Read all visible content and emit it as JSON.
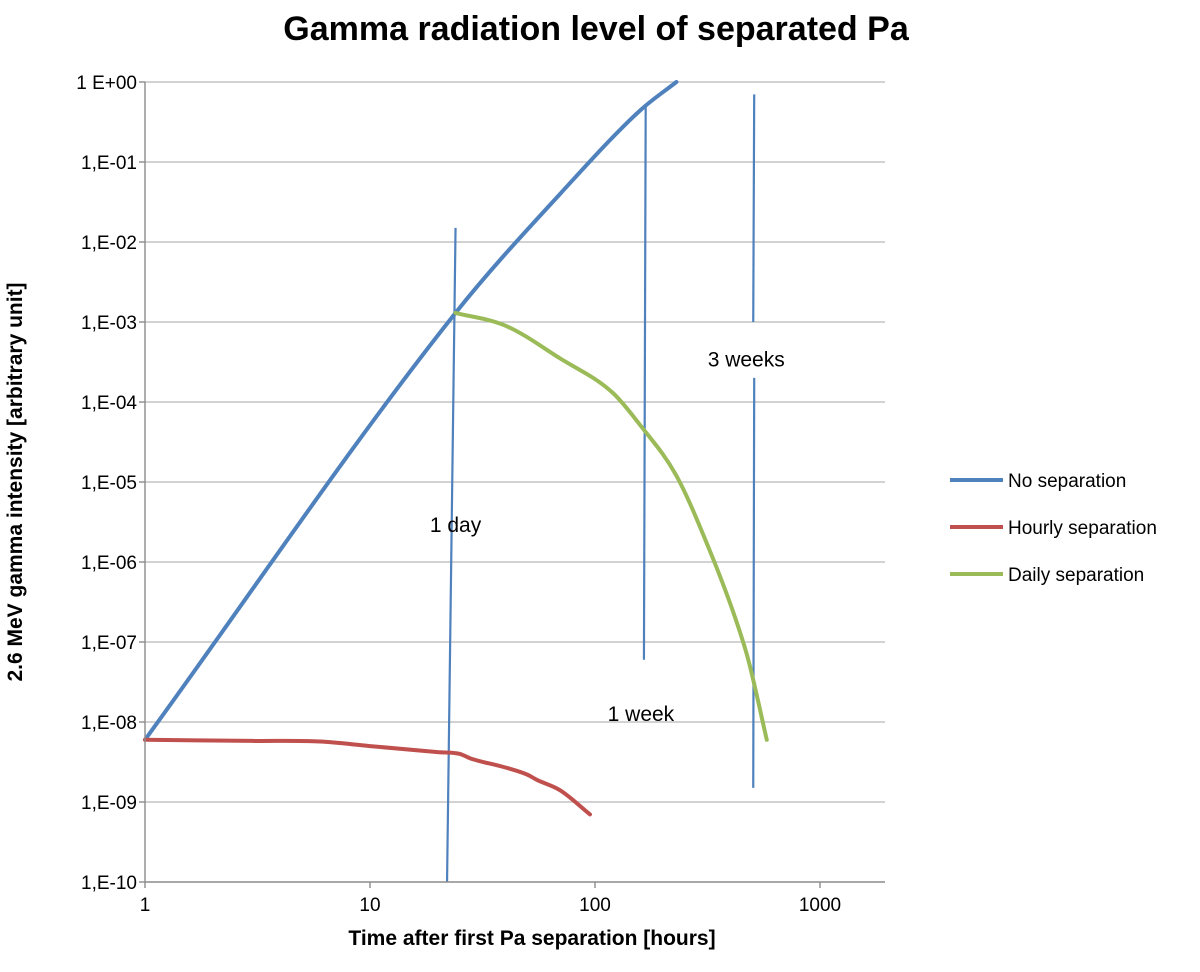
{
  "chart_data": {
    "type": "line",
    "title": "Gamma radiation level of separated Pa",
    "xlabel": "Time after first Pa separation [hours]",
    "ylabel": "2.6 MeV gamma intensity [arbitrary unit]",
    "xscale": "log",
    "yscale": "log",
    "xlim": [
      1,
      2000
    ],
    "ylim": [
      1e-10,
      1
    ],
    "x_ticks": [
      {
        "value": 1,
        "label": "1"
      },
      {
        "value": 10,
        "label": "10"
      },
      {
        "value": 100,
        "label": "100"
      },
      {
        "value": 1000,
        "label": "1000"
      }
    ],
    "y_ticks": [
      {
        "value": 1,
        "label": "1 E+00"
      },
      {
        "value": 0.1,
        "label": "1,E-01"
      },
      {
        "value": 0.01,
        "label": "1,E-02"
      },
      {
        "value": 0.001,
        "label": "1,E-03"
      },
      {
        "value": 0.0001,
        "label": "1,E-04"
      },
      {
        "value": 1e-05,
        "label": "1,E-05"
      },
      {
        "value": 1e-06,
        "label": "1,E-06"
      },
      {
        "value": 1e-07,
        "label": "1,E-07"
      },
      {
        "value": 1e-08,
        "label": "1,E-08"
      },
      {
        "value": 1e-09,
        "label": "1,E-09"
      },
      {
        "value": 1e-10,
        "label": "1,E-10"
      }
    ],
    "grid": "horizontal",
    "legend_position": "right",
    "series": [
      {
        "name": "No separation",
        "color": "#4f81bd",
        "points": [
          [
            1,
            6e-09
          ],
          [
            24,
            0.0013
          ],
          [
            70,
            0.04
          ],
          [
            160,
            0.45
          ],
          [
            230,
            1
          ]
        ]
      },
      {
        "name": "Hourly separation",
        "color": "#c0504d",
        "points": [
          [
            1,
            6e-09
          ],
          [
            3,
            5.8e-09
          ],
          [
            6,
            5.7e-09
          ],
          [
            10,
            5e-09
          ],
          [
            20,
            4.2e-09
          ],
          [
            25,
            4e-09
          ],
          [
            28,
            3.5e-09
          ],
          [
            40,
            2.7e-09
          ],
          [
            50,
            2.2e-09
          ],
          [
            55,
            1.9e-09
          ],
          [
            70,
            1.4e-09
          ],
          [
            95,
            7e-10
          ]
        ]
      },
      {
        "name": "Daily separation",
        "color": "#9bbb59",
        "points": [
          [
            24,
            0.0013
          ],
          [
            40,
            0.0009
          ],
          [
            70,
            0.00035
          ],
          [
            120,
            0.00013
          ],
          [
            160,
            5e-05
          ],
          [
            230,
            1.2e-05
          ],
          [
            320,
            1.5e-06
          ],
          [
            420,
            2e-07
          ],
          [
            480,
            6e-08
          ],
          [
            580,
            6e-09
          ]
        ]
      }
    ],
    "annotations": [
      {
        "text": "1 day",
        "line": [
          [
            24,
            0.015
          ],
          [
            22,
            1e-10
          ]
        ],
        "label_at": [
          24,
          3e-06
        ]
      },
      {
        "text": "1 week",
        "line": [
          [
            168,
            0.5
          ],
          [
            165,
            6e-08
          ]
        ],
        "label_at": [
          160,
          1.3e-08
        ]
      },
      {
        "text": "3 weeks",
        "line": [
          [
            510,
            0.7
          ],
          [
            505,
            0.001
          ]
        ],
        "line2": [
          [
            510,
            0.0002
          ],
          [
            505,
            1.5e-09
          ]
        ],
        "label_at": [
          470,
          0.00035
        ]
      }
    ]
  }
}
